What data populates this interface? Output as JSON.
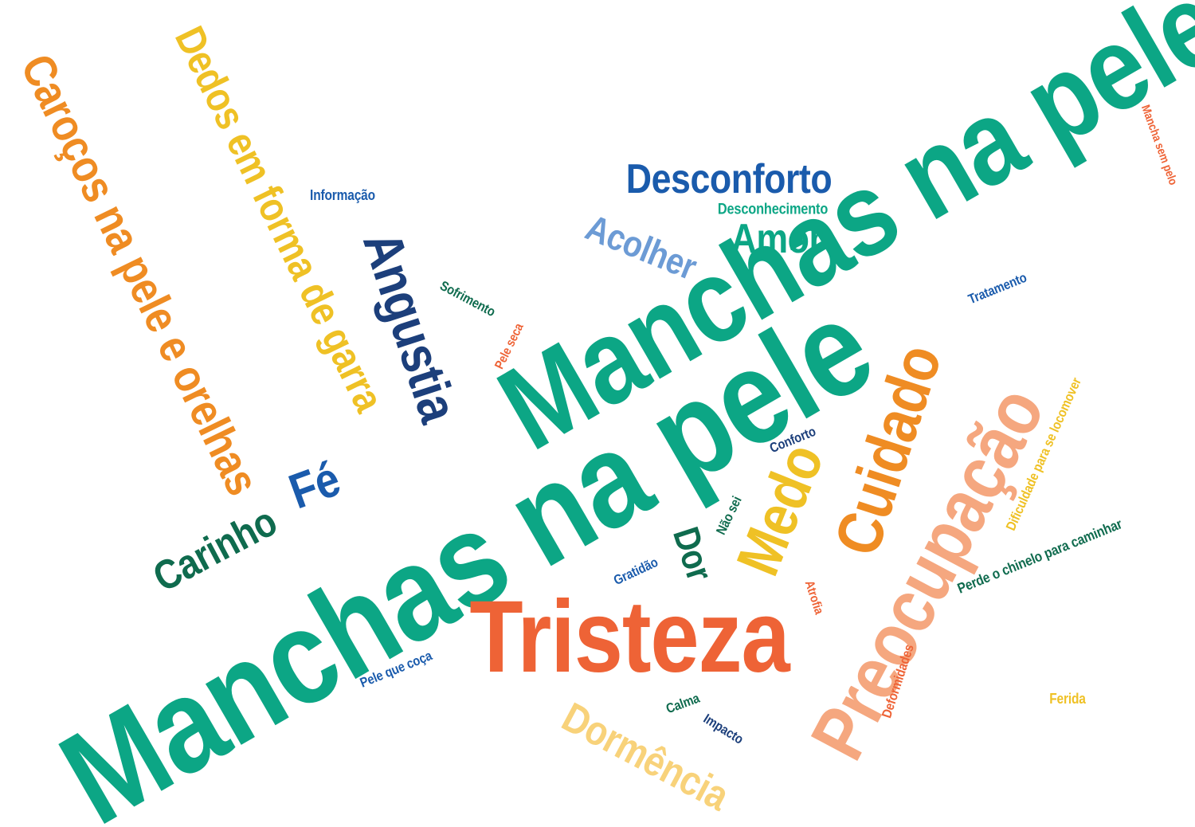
{
  "colors": {
    "green": "#0ca685",
    "dark_green": "#0f6b4e",
    "orange_red": "#ee6336",
    "orange": "#ef8c23",
    "salmon": "#f5a77f",
    "yellow": "#efc125",
    "light_yellow": "#f8d27a",
    "blue": "#1a5bac",
    "navy": "#1c3f7b",
    "light_blue": "#6c9bd5"
  },
  "words": {
    "manchas_na_pele_big": {
      "text": "Manchas na pele",
      "color": "#0ca685"
    },
    "manchas_na_pele_up": {
      "text": "Manchas na pele",
      "color": "#0ca685"
    },
    "tristeza": {
      "text": "Tristeza",
      "color": "#ee6336"
    },
    "preocupacao": {
      "text": "Preocupação",
      "color": "#f5a77f"
    },
    "cuidado": {
      "text": "Cuidado",
      "color": "#ef8c23"
    },
    "medo": {
      "text": "Medo",
      "color": "#efc125"
    },
    "carocos": {
      "text": "Caroços na pele e orelhas",
      "color": "#ef8c23"
    },
    "dedos": {
      "text": "Dedos em forma de garra",
      "color": "#efc125"
    },
    "angustia": {
      "text": "Angustia",
      "color": "#1c3f7b"
    },
    "desconforto": {
      "text": "Desconforto",
      "color": "#1a5bac"
    },
    "desconhecimento": {
      "text": "Desconhecimento",
      "color": "#0ca685"
    },
    "amor": {
      "text": "Amor",
      "color": "#0ca685"
    },
    "acolher": {
      "text": "Acolher",
      "color": "#6c9bd5"
    },
    "informacao": {
      "text": "Informação",
      "color": "#1a5bac"
    },
    "sofrimento": {
      "text": "Sofrimento",
      "color": "#0f6b4e"
    },
    "pele_seca": {
      "text": "Pele seca",
      "color": "#ee6336"
    },
    "tratamento": {
      "text": "Tratamento",
      "color": "#1a5bac"
    },
    "mancha_sem_pele": {
      "text": "Mancha sem pelo",
      "color": "#ee6336"
    },
    "conforto": {
      "text": "Conforto",
      "color": "#1c3f7b"
    },
    "nao_sei": {
      "text": "Não sei",
      "color": "#0f6b4e"
    },
    "dor": {
      "text": "Dor",
      "color": "#0f6b4e"
    },
    "gratidao": {
      "text": "Gratidão",
      "color": "#1a5bac"
    },
    "atrofia": {
      "text": "Atrofia",
      "color": "#ee6336"
    },
    "dificuldade": {
      "text": "Dificuldade para se locomover",
      "color": "#efc125"
    },
    "perde_chinelo": {
      "text": "Perde o chinelo para caminhar",
      "color": "#0f6b4e"
    },
    "carinho": {
      "text": "Carinho",
      "color": "#0f6b4e"
    },
    "fe": {
      "text": "Fé",
      "color": "#1a5bac"
    },
    "pele_que_coca": {
      "text": "Pele que coça",
      "color": "#1a5bac"
    },
    "dormencia": {
      "text": "Dormência",
      "color": "#f8d27a"
    },
    "calma": {
      "text": "Calma",
      "color": "#0f6b4e"
    },
    "impacto": {
      "text": "Impacto",
      "color": "#1c3f7b"
    },
    "deformidades": {
      "text": "Deformidades",
      "color": "#ee6336"
    },
    "ferida": {
      "text": "Ferida",
      "color": "#efc125"
    }
  }
}
